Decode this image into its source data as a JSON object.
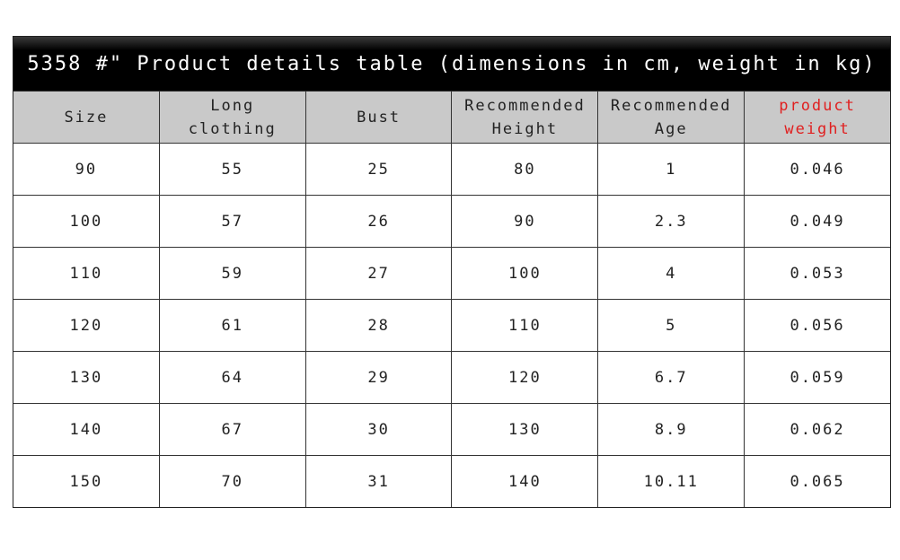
{
  "title": "5358 #\" Product details table (dimensions in cm, weight in kg)",
  "headers": [
    "Size",
    "Long\nclothing",
    "Bust",
    "Recommended\nHeight",
    "Recommended\nAge",
    "product\nweight"
  ],
  "highlight_color": "#e02020",
  "rows": [
    [
      "90",
      "55",
      "25",
      "80",
      "1",
      "0.046"
    ],
    [
      "100",
      "57",
      "26",
      "90",
      "2.3",
      "0.049"
    ],
    [
      "110",
      "59",
      "27",
      "100",
      "4",
      "0.053"
    ],
    [
      "120",
      "61",
      "28",
      "110",
      "5",
      "0.056"
    ],
    [
      "130",
      "64",
      "29",
      "120",
      "6.7",
      "0.059"
    ],
    [
      "140",
      "67",
      "30",
      "130",
      "8.9",
      "0.062"
    ],
    [
      "150",
      "70",
      "31",
      "140",
      "10.11",
      "0.065"
    ]
  ]
}
